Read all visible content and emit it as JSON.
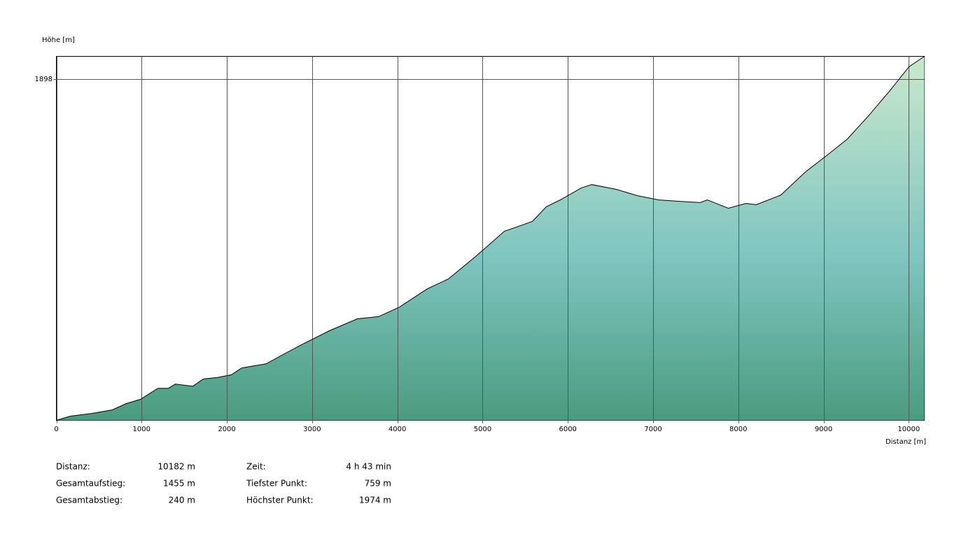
{
  "chart_data": {
    "type": "area",
    "ylabel": "Höhe [m]",
    "xlabel": "Distanz [m]",
    "x": [
      0,
      164,
      411,
      657,
      821,
      985,
      1191,
      1314,
      1396,
      1601,
      1724,
      1889,
      2053,
      2176,
      2463,
      2628,
      2874,
      3202,
      3531,
      3777,
      4024,
      4352,
      4598,
      4927,
      5255,
      5584,
      5748,
      5912,
      6158,
      6281,
      6569,
      6815,
      7062,
      7308,
      7554,
      7636,
      7882,
      8088,
      8211,
      8498,
      8786,
      9032,
      9279,
      9525,
      9771,
      10001,
      10182
    ],
    "values": [
      759,
      773,
      782,
      794,
      815,
      829,
      866,
      866,
      880,
      873,
      897,
      902,
      911,
      934,
      948,
      974,
      1011,
      1058,
      1098,
      1105,
      1137,
      1198,
      1231,
      1308,
      1390,
      1423,
      1472,
      1495,
      1535,
      1546,
      1530,
      1509,
      1495,
      1490,
      1486,
      1495,
      1467,
      1483,
      1479,
      1511,
      1588,
      1642,
      1698,
      1775,
      1857,
      1939,
      1974
    ],
    "xlim": [
      0,
      10182
    ],
    "ylim": [
      759,
      1974
    ],
    "xticks": [
      0,
      1000,
      2000,
      3000,
      4000,
      5000,
      6000,
      7000,
      8000,
      9000,
      10000
    ],
    "yticks": [
      1898
    ],
    "grid": true,
    "line_color": "#000000"
  },
  "stats": [
    {
      "label": "Distanz:",
      "value": "10182 m"
    },
    {
      "label": "Gesamtaufstieg:",
      "value": "1455 m"
    },
    {
      "label": "Gesamtabstieg:",
      "value": "240 m"
    },
    {
      "label": "Zeit:",
      "value": "4 h 43 min"
    },
    {
      "label": "Tiefster Punkt:",
      "value": "759 m"
    },
    {
      "label": "Höchster Punkt:",
      "value": "1974 m"
    }
  ]
}
